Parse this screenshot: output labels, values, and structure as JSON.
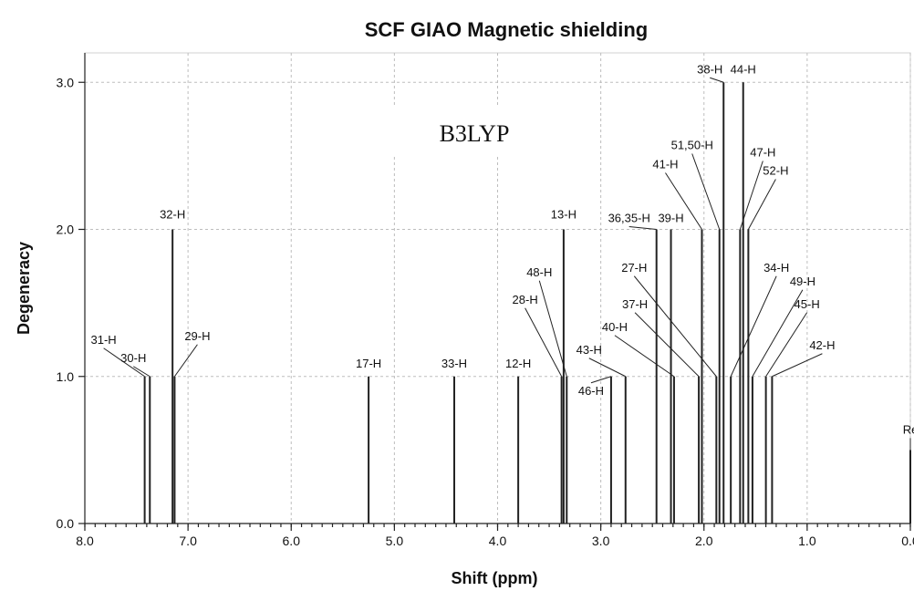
{
  "chart_data": {
    "type": "bar",
    "title": "SCF GIAO Magnetic shielding",
    "xlabel": "Shift (ppm)",
    "ylabel": "Degeneracy",
    "xlim": [
      8.0,
      0.0
    ],
    "ylim": [
      0.0,
      3.2
    ],
    "x_reversed": true,
    "grid": true,
    "x_ticks": [
      8.0,
      7.0,
      6.0,
      5.0,
      4.0,
      3.0,
      2.0,
      1.0,
      0.0
    ],
    "x_tick_labels": [
      "8.0",
      "7.0",
      "6.0",
      "5.0",
      "4.0",
      "3.0",
      "2.0",
      "1.0",
      "0.0"
    ],
    "y_ticks": [
      0.0,
      1.0,
      2.0,
      3.0
    ],
    "y_tick_labels": [
      "0.0",
      "1.0",
      "2.0",
      "3.0"
    ],
    "annotation": "B3LYP",
    "peaks": [
      {
        "shift": 7.42,
        "degeneracy": 1,
        "label": "31-H"
      },
      {
        "shift": 7.37,
        "degeneracy": 1,
        "label": "30-H"
      },
      {
        "shift": 7.15,
        "degeneracy": 2,
        "label": "32-H"
      },
      {
        "shift": 7.13,
        "degeneracy": 1,
        "label": "29-H"
      },
      {
        "shift": 5.25,
        "degeneracy": 1,
        "label": "17-H"
      },
      {
        "shift": 4.42,
        "degeneracy": 1,
        "label": "33-H"
      },
      {
        "shift": 3.8,
        "degeneracy": 1,
        "label": "12-H"
      },
      {
        "shift": 3.38,
        "degeneracy": 1,
        "label": "28-H"
      },
      {
        "shift": 3.33,
        "degeneracy": 1,
        "label": "48-H"
      },
      {
        "shift": 3.36,
        "degeneracy": 2,
        "label": "13-H"
      },
      {
        "shift": 2.9,
        "degeneracy": 1,
        "label": "46-H"
      },
      {
        "shift": 2.76,
        "degeneracy": 1,
        "label": "43-H"
      },
      {
        "shift": 2.46,
        "degeneracy": 2,
        "label": "36,35-H"
      },
      {
        "shift": 2.32,
        "degeneracy": 2,
        "label": "39-H"
      },
      {
        "shift": 2.29,
        "degeneracy": 1,
        "label": "40-H"
      },
      {
        "shift": 2.05,
        "degeneracy": 1,
        "label": "37-H"
      },
      {
        "shift": 2.02,
        "degeneracy": 2,
        "label": "41-H"
      },
      {
        "shift": 1.88,
        "degeneracy": 1,
        "label": "27-H"
      },
      {
        "shift": 1.85,
        "degeneracy": 2,
        "label": "51,50-H"
      },
      {
        "shift": 1.81,
        "degeneracy": 3,
        "label": "38-H"
      },
      {
        "shift": 1.74,
        "degeneracy": 1,
        "label": "34-H"
      },
      {
        "shift": 1.65,
        "degeneracy": 2,
        "label": "47-H"
      },
      {
        "shift": 1.62,
        "degeneracy": 3,
        "label": "44-H"
      },
      {
        "shift": 1.57,
        "degeneracy": 2,
        "label": "52-H"
      },
      {
        "shift": 1.53,
        "degeneracy": 1,
        "label": "49-H"
      },
      {
        "shift": 1.4,
        "degeneracy": 1,
        "label": "45-H"
      },
      {
        "shift": 1.34,
        "degeneracy": 1,
        "label": "42-H"
      },
      {
        "shift": 0.0,
        "degeneracy": 0.5,
        "label": "Re"
      }
    ]
  }
}
